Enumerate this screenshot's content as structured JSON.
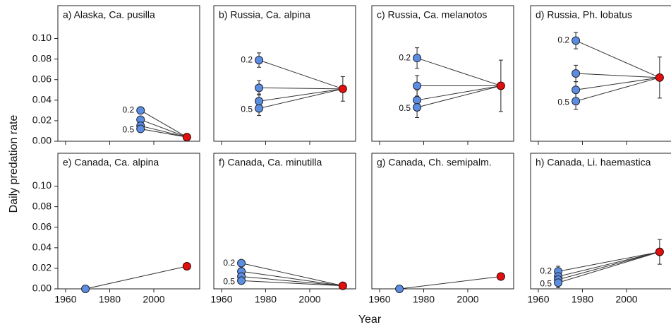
{
  "axes": {
    "x_label": "Year",
    "y_label": "Daily predation rate",
    "past_color": "#5b8ee0",
    "recent_color": "#e01010"
  },
  "chart_data": [
    {
      "type": "line",
      "title": "a) Alaska, Ca. pusilla",
      "xlim": [
        1956.5,
        2020.8
      ],
      "xticks": [
        1960,
        1980,
        2000
      ],
      "ylim": [
        0,
        0.132
      ],
      "yticks": [
        {
          "value": 0,
          "label": "0.00"
        },
        {
          "value": 0.02,
          "label": "0.02"
        },
        {
          "value": 0.04,
          "label": "0.04"
        },
        {
          "value": 0.06,
          "label": "0.06"
        },
        {
          "value": 0.08,
          "label": "0.08"
        },
        {
          "value": 0.1,
          "label": "0.10"
        }
      ],
      "past": {
        "x": 1994,
        "values": [
          0.03,
          0.021,
          0.015,
          0.012
        ],
        "labels": [
          "0.2",
          "0.5"
        ]
      },
      "recent": {
        "x": 2015,
        "value": 0.004
      }
    },
    {
      "type": "line",
      "title": "b) Russia, Ca. alpina",
      "xlim": [
        1956.5,
        2020.8
      ],
      "xticks": [
        1960,
        1980,
        2000
      ],
      "ylim": [
        0,
        0.132
      ],
      "past": {
        "x": 1977,
        "values": [
          0.079,
          0.052,
          0.039,
          0.032
        ],
        "errors": [
          0.007,
          0.007,
          0.007,
          0.007
        ],
        "labels": [
          "0.2",
          "0.5"
        ]
      },
      "recent": {
        "x": 2015,
        "value": 0.051,
        "error": 0.012
      }
    },
    {
      "type": "line",
      "title": "c) Russia, Ca. melanotos",
      "xlim": [
        1956.5,
        2020.8
      ],
      "xticks": [
        1960,
        1980,
        2000
      ],
      "ylim": [
        0,
        0.132
      ],
      "past": {
        "x": 1977,
        "values": [
          0.081,
          0.054,
          0.04,
          0.033
        ],
        "errors": [
          0.01,
          0.01,
          0.01,
          0.01
        ],
        "labels": [
          "0.2",
          "0.5"
        ]
      },
      "recent": {
        "x": 2015,
        "value": 0.054,
        "error": 0.025
      }
    },
    {
      "type": "line",
      "title": "d) Russia, Ph. lobatus",
      "xlim": [
        1956.5,
        2020.8
      ],
      "xticks": [
        1960,
        1980,
        2000
      ],
      "ylim": [
        0,
        0.132
      ],
      "past": {
        "x": 1977,
        "values": [
          0.098,
          0.066,
          0.05,
          0.039
        ],
        "errors": [
          0.008,
          0.008,
          0.008,
          0.008
        ],
        "labels": [
          "0.2",
          "0.5"
        ]
      },
      "recent": {
        "x": 2015,
        "value": 0.062,
        "error": 0.02
      }
    },
    {
      "type": "line",
      "title": "e) Canada, Ca. alpina",
      "xlim": [
        1956.5,
        2020.8
      ],
      "xticks": [
        1960,
        1980,
        2000
      ],
      "ylim": [
        0,
        0.132
      ],
      "yticks": [
        {
          "value": 0,
          "label": "0.00"
        },
        {
          "value": 0.02,
          "label": "0.02"
        },
        {
          "value": 0.04,
          "label": "0.04"
        },
        {
          "value": 0.06,
          "label": "0.06"
        },
        {
          "value": 0.08,
          "label": "0.08"
        },
        {
          "value": 0.1,
          "label": "0.10"
        }
      ],
      "past": {
        "x": 1969,
        "values": [
          0.0
        ]
      },
      "recent": {
        "x": 2015,
        "value": 0.022
      }
    },
    {
      "type": "line",
      "title": "f) Canada, Ca. minutilla",
      "xlim": [
        1956.5,
        2020.8
      ],
      "xticks": [
        1960,
        1980,
        2000
      ],
      "ylim": [
        0,
        0.132
      ],
      "past": {
        "x": 1969,
        "values": [
          0.025,
          0.017,
          0.012,
          0.008
        ],
        "errors": [
          0.003,
          0.003,
          0.003,
          0.003
        ],
        "labels": [
          "0.2",
          "0.5"
        ]
      },
      "recent": {
        "x": 2015,
        "value": 0.003
      }
    },
    {
      "type": "line",
      "title": "g) Canada, Ch. semipalm.",
      "xlim": [
        1956.5,
        2020.8
      ],
      "xticks": [
        1960,
        1980,
        2000
      ],
      "ylim": [
        0,
        0.132
      ],
      "past": {
        "x": 1969,
        "values": [
          0.0
        ]
      },
      "recent": {
        "x": 2015,
        "value": 0.012
      }
    },
    {
      "type": "line",
      "title": "h) Canada, Li. haemastica",
      "xlim": [
        1956.5,
        2020.8
      ],
      "xticks": [
        1960,
        1980,
        2000
      ],
      "ylim": [
        0,
        0.132
      ],
      "past": {
        "x": 1969,
        "values": [
          0.017,
          0.012,
          0.009,
          0.006
        ],
        "errors": [
          0.005,
          0.005,
          0.005,
          0.005
        ],
        "labels": [
          "0.2",
          "0.5"
        ]
      },
      "recent": {
        "x": 2015,
        "value": 0.036,
        "error": 0.012
      }
    }
  ]
}
